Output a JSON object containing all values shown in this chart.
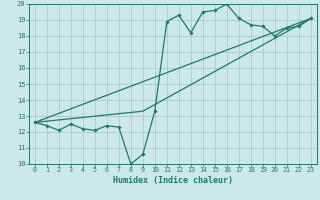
{
  "xlabel": "Humidex (Indice chaleur)",
  "bg_color": "#cce8ea",
  "grid_color": "#aaccce",
  "line_color": "#1a7a6e",
  "xlim": [
    -0.5,
    23.5
  ],
  "ylim": [
    10,
    20
  ],
  "xticks": [
    0,
    1,
    2,
    3,
    4,
    5,
    6,
    7,
    8,
    9,
    10,
    11,
    12,
    13,
    14,
    15,
    16,
    17,
    18,
    19,
    20,
    21,
    22,
    23
  ],
  "yticks": [
    10,
    11,
    12,
    13,
    14,
    15,
    16,
    17,
    18,
    19,
    20
  ],
  "series1_x": [
    0,
    1,
    2,
    3,
    4,
    5,
    6,
    7,
    8,
    9,
    10,
    11,
    12,
    13,
    14,
    15,
    16,
    17,
    18,
    19,
    20,
    21,
    22,
    23
  ],
  "series1_y": [
    12.6,
    12.4,
    12.1,
    12.5,
    12.2,
    12.1,
    12.4,
    12.3,
    10.0,
    10.6,
    13.3,
    18.9,
    19.3,
    18.2,
    19.5,
    19.6,
    20.0,
    19.1,
    18.7,
    18.6,
    18.0,
    18.5,
    18.6,
    19.1
  ],
  "series2_x": [
    0,
    23
  ],
  "series2_y": [
    12.6,
    19.1
  ],
  "series3_x": [
    0,
    9,
    23
  ],
  "series3_y": [
    12.6,
    13.3,
    19.1
  ]
}
